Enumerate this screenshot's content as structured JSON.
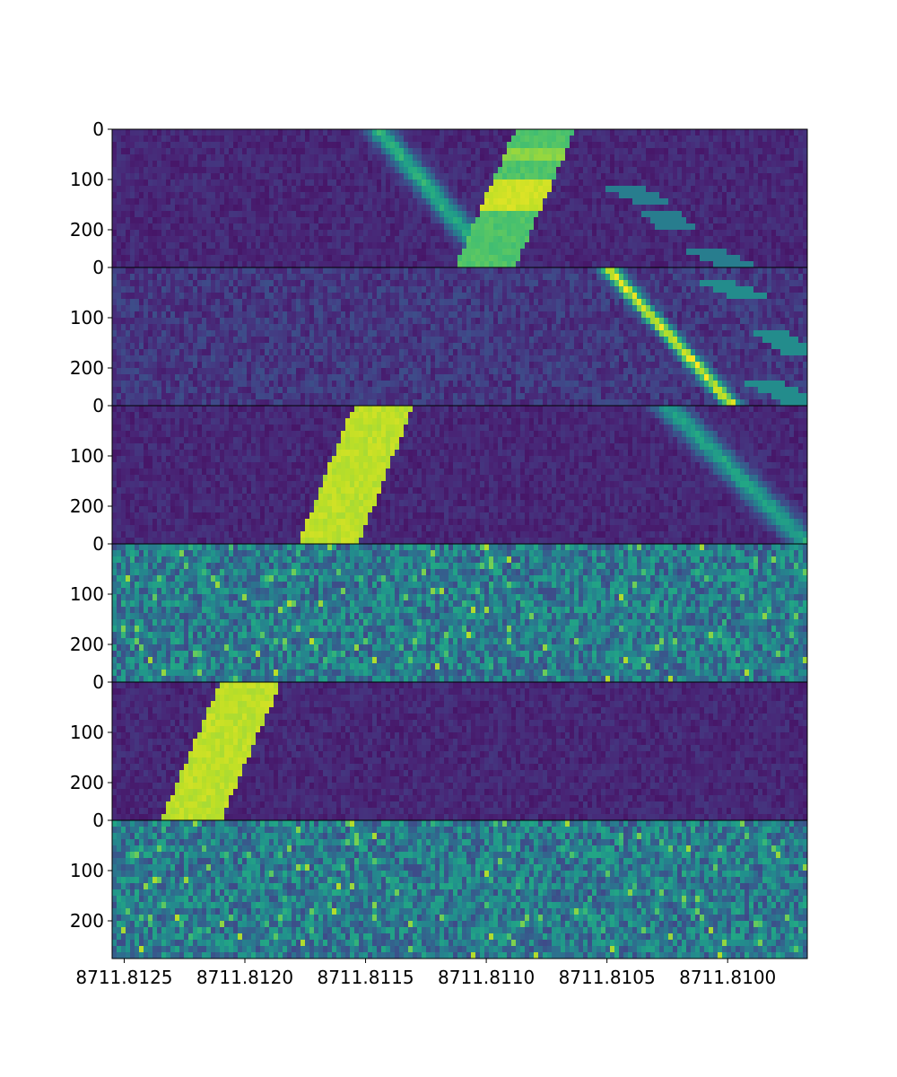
{
  "chart_data": {
    "type": "heatmap",
    "layout": "6 vertically stacked panels sharing one x axis",
    "colormap": "viridis",
    "x_axis": {
      "reversed": true,
      "lim": [
        8711.81255,
        8711.80967
      ],
      "ticks": [
        8711.8125,
        8711.812,
        8711.8115,
        8711.811,
        8711.8105,
        8711.81
      ],
      "tick_labels": [
        "8711.8125",
        "8711.8120",
        "8711.8115",
        "8711.8110",
        "8711.8105",
        "8711.8100"
      ]
    },
    "y_axis": {
      "inverted": true,
      "lim": [
        0,
        275
      ],
      "ticks": [
        0,
        100,
        200
      ],
      "tick_labels": [
        "0",
        "100",
        "200"
      ]
    },
    "panels": [
      {
        "id": 1,
        "background": "low",
        "features": [
          {
            "kind": "diagonal-stripe",
            "level": 0.72,
            "x_top_left": 8711.81088,
            "x_top_right": 8711.81063,
            "x_bottom_left": 8711.81113,
            "x_bottom_right": 8711.81088,
            "peak_at_y": [
              [
                100,
                160,
                0.95
              ],
              [
                40,
                60,
                0.85
              ]
            ]
          },
          {
            "kind": "gaussian-trail",
            "level": 0.55,
            "x_at_y0": 8711.81145,
            "slope_per_row": -1.8e-06,
            "width": 6e-05,
            "fade_start_y": 0
          },
          {
            "kind": "blocky-trail",
            "level": 0.42,
            "segments": [
              [
                110,
                150,
                8711.81045,
                8711.8103
              ],
              [
                160,
                200,
                8711.8103,
                8711.8102
              ],
              [
                240,
                275,
                8711.8101,
                8711.80995
              ]
            ]
          }
        ]
      },
      {
        "id": 2,
        "background": "low-noisy",
        "features": [
          {
            "kind": "gaussian-trail",
            "level": 0.85,
            "x_at_y0": 8711.8105,
            "slope_per_row": -1.9e-06,
            "width": 4e-05,
            "fade_start_y": 0
          },
          {
            "kind": "blocky-trail",
            "level": 0.48,
            "segments": [
              [
                20,
                60,
                8711.8101,
                8711.8099
              ],
              [
                120,
                170,
                8711.80985,
                8711.8097
              ],
              [
                230,
                275,
                8711.80985,
                8711.80967
              ]
            ]
          }
        ]
      },
      {
        "id": 3,
        "background": "low",
        "features": [
          {
            "kind": "diagonal-stripe",
            "level": 0.9,
            "x_top_left": 8711.81155,
            "x_top_right": 8711.8113,
            "x_bottom_left": 8711.81178,
            "x_bottom_right": 8711.81153
          },
          {
            "kind": "gaussian-trail",
            "level": 0.5,
            "x_at_y0": 8711.81025,
            "slope_per_row": -2.1e-06,
            "width": 7e-05,
            "fade_start_y": 0
          }
        ]
      },
      {
        "id": 4,
        "background": "mid-noisy",
        "features": []
      },
      {
        "id": 5,
        "background": "low",
        "features": [
          {
            "kind": "diagonal-stripe",
            "level": 0.9,
            "x_top_left": 8711.8121,
            "x_top_right": 8711.81185,
            "x_bottom_left": 8711.81235,
            "x_bottom_right": 8711.8121
          }
        ]
      },
      {
        "id": 6,
        "background": "mid-noisy",
        "features": []
      }
    ]
  }
}
